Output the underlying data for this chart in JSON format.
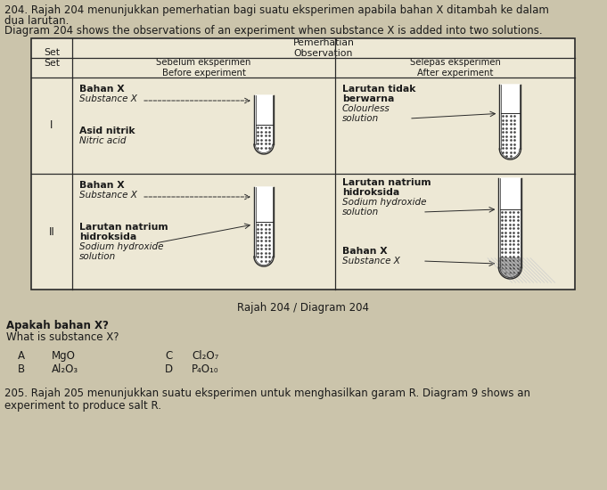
{
  "title_line1": "204. Rajah 204 menunjukkan pemerhatian bagi suatu eksperimen apabila bahan X ditambah ke dalam",
  "title_line2": "dua larutan.",
  "title_line3": "Diagram 204 shows the observations of an experiment when substance X is added into two solutions.",
  "caption": "Rajah 204 / Diagram 204",
  "question_line1": "Apakah bahan X?",
  "question_line2": "What is substance X?",
  "opt_A": "A",
  "opt_A_text": "MgO",
  "opt_B": "B",
  "opt_B_text": "Al₂O₃",
  "opt_C": "C",
  "opt_C_text": "Cl₂O₇",
  "opt_D": "D",
  "opt_D_text": "P₄O₁₀",
  "footer_line1": "205. Rajah 205 menunjukkan suatu eksperimen untuk menghasilkan garam R. Diagram 9 shows an",
  "footer_line2": "experiment to produce salt R.",
  "bg_color": "#cbc4ab",
  "table_bg": "#ede8d5",
  "text_color": "#1a1a1a",
  "border_color": "#2a2a2a"
}
